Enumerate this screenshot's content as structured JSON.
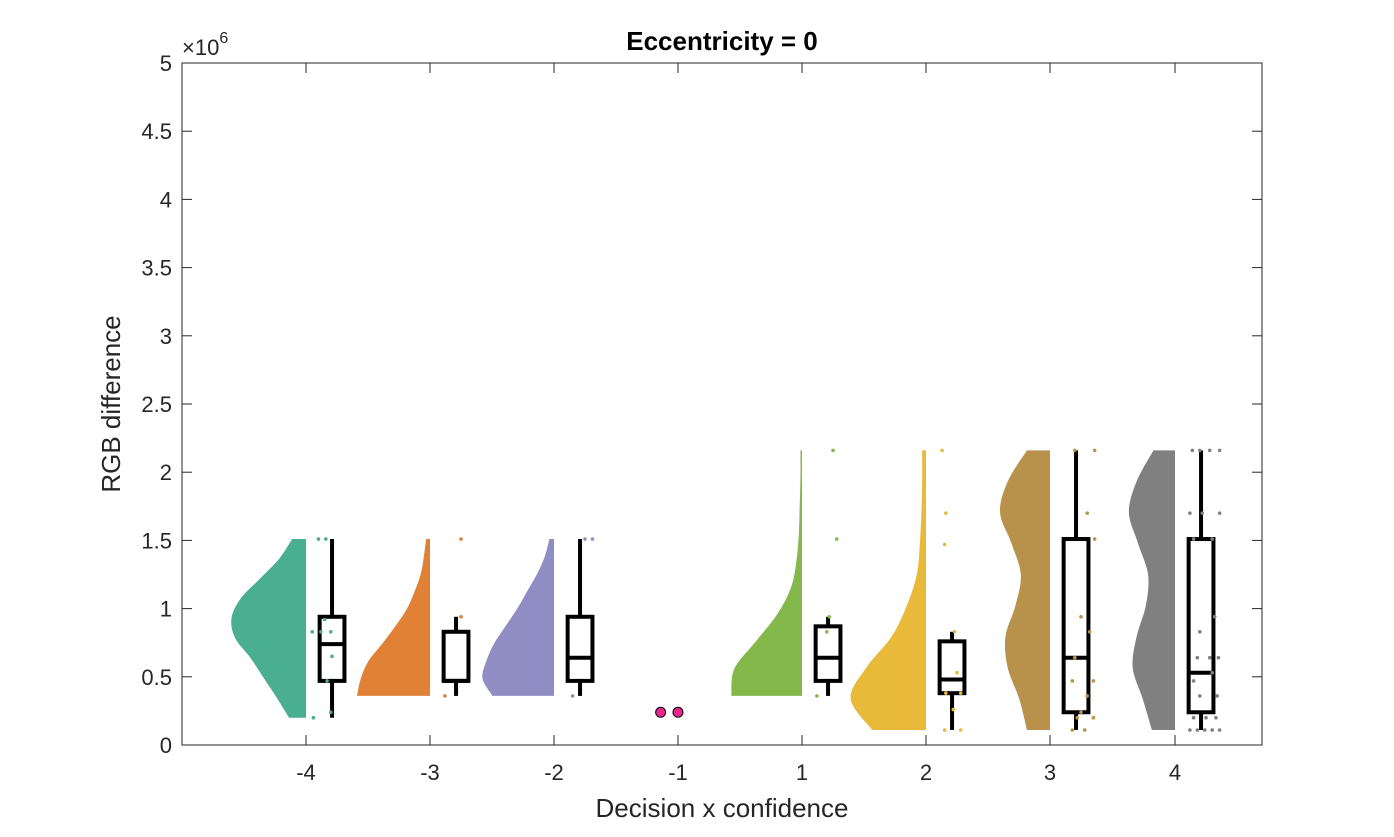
{
  "chart_data": {
    "type": "raincloud",
    "title": "Eccentricity = 0",
    "xlabel": "Decision x confidence",
    "ylabel": "RGB difference",
    "y_exponent_label": "×10",
    "y_exponent_power": "6",
    "ylim": [
      0,
      5000000
    ],
    "y_ticks": [
      0,
      500000,
      1000000,
      1500000,
      2000000,
      2500000,
      3000000,
      3500000,
      4000000,
      4500000,
      5000000
    ],
    "y_tick_labels": [
      "0",
      "0.5",
      "1",
      "1.5",
      "2",
      "2.5",
      "3",
      "3.5",
      "4",
      "4.5",
      "5"
    ],
    "x_tick_labels": [
      "-4",
      "-3",
      "-2",
      "-1",
      "1",
      "2",
      "3",
      "4"
    ],
    "grid": false,
    "groups": [
      {
        "label": "-4",
        "color": "#4aae91",
        "density": {
          "min": 200000,
          "max": 1510000,
          "widths": [
            0.22,
            0.38,
            0.55,
            0.72,
            0.92,
            0.97,
            0.85,
            0.6,
            0.35,
            0.18
          ]
        },
        "box": {
          "whisker_low": 200000,
          "q1": 470000,
          "median": 740000,
          "q3": 940000,
          "whisker_high": 1510000
        },
        "points": [
          [
            0.06,
            200000
          ],
          [
            0.2,
            240000
          ],
          [
            0.17,
            470000
          ],
          [
            0.21,
            650000
          ],
          [
            0.05,
            830000
          ],
          [
            0.12,
            830000
          ],
          [
            0.2,
            830000
          ],
          [
            0.15,
            920000
          ],
          [
            0.1,
            1510000
          ],
          [
            0.16,
            1510000
          ]
        ]
      },
      {
        "label": "-3",
        "color": "#e08136",
        "density": {
          "min": 360000,
          "max": 1510000,
          "widths": [
            0.95,
            0.9,
            0.8,
            0.62,
            0.45,
            0.3,
            0.2,
            0.12,
            0.08,
            0.05
          ]
        },
        "box": {
          "whisker_low": 360000,
          "q1": 470000,
          "median": 470000,
          "q3": 830000,
          "whisker_high": 940000
        },
        "points": [
          [
            0.12,
            360000
          ],
          [
            0.25,
            940000
          ],
          [
            0.25,
            1510000
          ]
        ]
      },
      {
        "label": "-2",
        "color": "#908dc4",
        "density": {
          "min": 360000,
          "max": 1510000,
          "widths": [
            0.8,
            0.93,
            0.88,
            0.78,
            0.63,
            0.48,
            0.35,
            0.22,
            0.12,
            0.06
          ]
        },
        "box": {
          "whisker_low": 360000,
          "q1": 470000,
          "median": 640000,
          "q3": 940000,
          "whisker_high": 1510000
        },
        "points": [
          [
            0.15,
            360000
          ],
          [
            0.25,
            1510000
          ],
          [
            0.31,
            1510000
          ]
        ]
      },
      {
        "label": "-1",
        "color": "#e8268f",
        "density": null,
        "box": null,
        "points": [
          [
            -0.14,
            240000
          ],
          [
            0.0,
            240000
          ]
        ]
      },
      {
        "label": "1",
        "color": "#84b84a",
        "density": {
          "min": 360000,
          "max": 2160000,
          "widths": [
            0.92,
            0.88,
            0.6,
            0.32,
            0.14,
            0.07,
            0.04,
            0.03,
            0.02,
            0.02
          ]
        },
        "box": {
          "whisker_low": 360000,
          "q1": 470000,
          "median": 640000,
          "q3": 870000,
          "whisker_high": 940000
        },
        "points": [
          [
            0.12,
            360000
          ],
          [
            0.2,
            830000
          ],
          [
            0.22,
            940000
          ],
          [
            0.28,
            1510000
          ],
          [
            0.25,
            2160000
          ]
        ]
      },
      {
        "label": "2",
        "color": "#e9b93a",
        "density": {
          "min": 110000,
          "max": 2160000,
          "widths": [
            0.7,
            0.98,
            0.78,
            0.45,
            0.25,
            0.12,
            0.08,
            0.06,
            0.05,
            0.05
          ]
        },
        "box": {
          "whisker_low": 110000,
          "q1": 380000,
          "median": 480000,
          "q3": 760000,
          "whisker_high": 830000
        },
        "points": [
          [
            0.15,
            110000
          ],
          [
            0.28,
            110000
          ],
          [
            0.22,
            260000
          ],
          [
            0.16,
            380000
          ],
          [
            0.28,
            380000
          ],
          [
            0.25,
            530000
          ],
          [
            0.23,
            830000
          ],
          [
            0.15,
            1470000
          ],
          [
            0.16,
            1700000
          ],
          [
            0.13,
            2160000
          ]
        ]
      },
      {
        "label": "3",
        "color": "#b8924a",
        "density": {
          "min": 110000,
          "max": 2160000,
          "widths": [
            0.3,
            0.4,
            0.55,
            0.58,
            0.45,
            0.38,
            0.5,
            0.65,
            0.55,
            0.3
          ]
        },
        "box": {
          "whisker_low": 110000,
          "q1": 240000,
          "median": 640000,
          "q3": 1510000,
          "whisker_high": 2160000
        },
        "points": [
          [
            0.18,
            110000
          ],
          [
            0.28,
            110000
          ],
          [
            0.22,
            200000
          ],
          [
            0.35,
            200000
          ],
          [
            0.25,
            240000
          ],
          [
            0.3,
            360000
          ],
          [
            0.18,
            470000
          ],
          [
            0.35,
            470000
          ],
          [
            0.2,
            640000
          ],
          [
            0.32,
            830000
          ],
          [
            0.25,
            940000
          ],
          [
            0.36,
            1510000
          ],
          [
            0.3,
            1700000
          ],
          [
            0.2,
            2160000
          ],
          [
            0.36,
            2160000
          ]
        ]
      },
      {
        "label": "4",
        "color": "#808080",
        "density": {
          "min": 110000,
          "max": 2160000,
          "widths": [
            0.3,
            0.42,
            0.55,
            0.5,
            0.38,
            0.35,
            0.48,
            0.6,
            0.5,
            0.28
          ]
        },
        "box": {
          "whisker_low": 110000,
          "q1": 240000,
          "median": 530000,
          "q3": 1510000,
          "whisker_high": 2160000
        },
        "points": [
          [
            0.12,
            110000
          ],
          [
            0.18,
            110000
          ],
          [
            0.24,
            110000
          ],
          [
            0.3,
            110000
          ],
          [
            0.36,
            110000
          ],
          [
            0.15,
            200000
          ],
          [
            0.25,
            200000
          ],
          [
            0.33,
            200000
          ],
          [
            0.2,
            360000
          ],
          [
            0.34,
            360000
          ],
          [
            0.15,
            470000
          ],
          [
            0.3,
            530000
          ],
          [
            0.18,
            640000
          ],
          [
            0.28,
            640000
          ],
          [
            0.35,
            640000
          ],
          [
            0.2,
            830000
          ],
          [
            0.32,
            940000
          ],
          [
            0.15,
            1510000
          ],
          [
            0.3,
            1510000
          ],
          [
            0.12,
            1700000
          ],
          [
            0.22,
            1700000
          ],
          [
            0.36,
            1700000
          ],
          [
            0.14,
            2160000
          ],
          [
            0.2,
            2160000
          ],
          [
            0.28,
            2160000
          ],
          [
            0.36,
            2160000
          ]
        ]
      }
    ]
  }
}
